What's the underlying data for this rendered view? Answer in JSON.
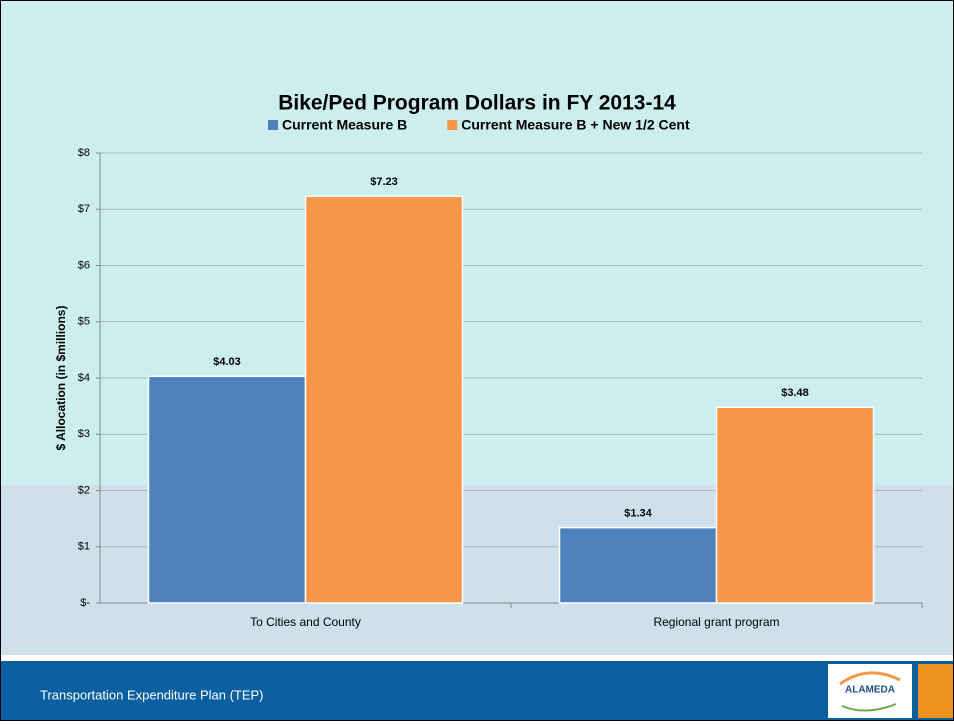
{
  "chart_data": {
    "type": "bar",
    "title": "Bike/Ped Program Dollars in FY 2013-14",
    "y_label": "$ Allocation (in $millions)",
    "categories": [
      "To Cities and County",
      "Regional grant program"
    ],
    "series": [
      {
        "name": "Current Measure B",
        "color": "#4f81bd",
        "values": [
          4.03,
          1.34
        ],
        "value_labels": [
          "$4.03",
          "$1.34"
        ]
      },
      {
        "name": "Current Measure B + New 1/2 Cent",
        "color": "#f79646",
        "values": [
          7.23,
          3.48
        ],
        "value_labels": [
          "$7.23",
          "$3.48"
        ]
      }
    ],
    "ylim": [
      0,
      8
    ],
    "yticks": [
      {
        "value": 0,
        "label": "$-"
      },
      {
        "value": 1,
        "label": "$1"
      },
      {
        "value": 2,
        "label": "$2"
      },
      {
        "value": 3,
        "label": "$3"
      },
      {
        "value": 4,
        "label": "$4"
      },
      {
        "value": 5,
        "label": "$5"
      },
      {
        "value": 6,
        "label": "$6"
      },
      {
        "value": 7,
        "label": "$7"
      },
      {
        "value": 8,
        "label": "$8"
      }
    ],
    "grid": true,
    "legend": "top"
  },
  "footer": {
    "text": "Transportation Expenditure Plan (TEP)",
    "logo": "ALAMEDA"
  }
}
